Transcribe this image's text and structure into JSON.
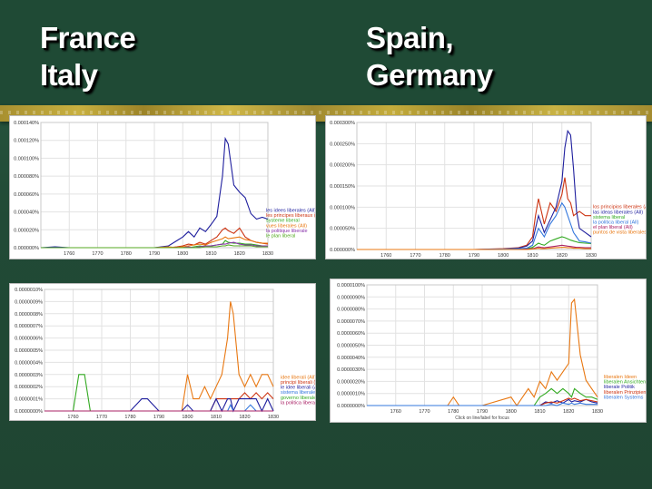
{
  "slide": {
    "title_left": [
      "France",
      "Italy"
    ],
    "title_right": [
      "Spain,",
      "Germany"
    ]
  },
  "colors": {
    "background": "#224a36",
    "chalk_strip": "#c8b040",
    "series": [
      "#1f1f9e",
      "#cc3311",
      "#33aa22",
      "#e87711",
      "#8833aa",
      "#55aa22"
    ]
  },
  "chart_data": [
    {
      "type": "line",
      "title": "",
      "x": [
        1750,
        1755,
        1760,
        1765,
        1770,
        1775,
        1780,
        1785,
        1790,
        1795,
        1798,
        1800,
        1802,
        1804,
        1806,
        1808,
        1810,
        1812,
        1814,
        1815,
        1816,
        1818,
        1820,
        1822,
        1824,
        1826,
        1828,
        1830
      ],
      "xticks": [
        1760,
        1770,
        1780,
        1790,
        1800,
        1810,
        1820,
        1830
      ],
      "yticks": [
        "0.000000%",
        "0.000020%",
        "0.000040%",
        "0.000060%",
        "0.000080%",
        "0.000100%",
        "0.000120%",
        "0.000140%"
      ],
      "ylim": [
        0,
        0.00014
      ],
      "series": [
        {
          "name": "les idees liberales (All)",
          "color": "#1f1f9e",
          "values": [
            0,
            1e-06,
            0,
            0,
            0,
            0,
            0,
            0,
            0,
            2e-06,
            8e-06,
            1.2e-05,
            1.8e-05,
            1.2e-05,
            2.2e-05,
            1.8e-05,
            2.6e-05,
            3.5e-05,
            8e-05,
            0.000122,
            0.000116,
            7e-05,
            6.2e-05,
            5.6e-05,
            3.8e-05,
            3.2e-05,
            3.4e-05,
            3.2e-05
          ]
        },
        {
          "name": "les principes liberaux (All)",
          "color": "#cc3311",
          "values": [
            0,
            0,
            0,
            0,
            0,
            0,
            0,
            0,
            0,
            0,
            1e-06,
            2e-06,
            4e-06,
            3e-06,
            6e-06,
            4e-06,
            8e-06,
            1.2e-05,
            2e-05,
            2.2e-05,
            1.9e-05,
            1.6e-05,
            2.2e-05,
            1.2e-05,
            8e-06,
            6e-06,
            5e-06,
            4e-06
          ]
        },
        {
          "name": "systeme liberal",
          "color": "#33aa22",
          "values": [
            0,
            0,
            0,
            0,
            0,
            0,
            0,
            0,
            0,
            0,
            0,
            1e-06,
            0,
            1e-06,
            2e-06,
            1e-06,
            2e-06,
            3e-06,
            4e-06,
            8e-06,
            6e-06,
            5e-06,
            5e-06,
            4e-06,
            4e-06,
            3e-06,
            2e-06,
            2e-06
          ]
        },
        {
          "name": "vues liberales (All)",
          "color": "#e87711",
          "values": [
            0,
            0,
            0,
            0,
            0,
            0,
            0,
            0,
            0,
            1e-06,
            0,
            1e-06,
            2e-06,
            3e-06,
            4e-06,
            3e-06,
            6e-06,
            8e-06,
            1e-05,
            1.2e-05,
            1e-05,
            1.1e-05,
            1.2e-05,
            9e-06,
            8e-06,
            6e-06,
            5e-06,
            5e-06
          ]
        },
        {
          "name": "la politique liberale",
          "color": "#8833aa",
          "values": [
            0,
            0,
            0,
            0,
            0,
            0,
            0,
            0,
            0,
            0,
            0,
            0,
            1e-06,
            0,
            1e-06,
            2e-06,
            2e-06,
            3e-06,
            4e-06,
            4e-06,
            5e-06,
            6e-06,
            4e-06,
            3e-06,
            3e-06,
            2e-06,
            2e-06,
            2e-06
          ]
        },
        {
          "name": "le plan liberal",
          "color": "#55aa22",
          "values": [
            0,
            0,
            0,
            0,
            0,
            0,
            0,
            0,
            0,
            0,
            0,
            0,
            0,
            0,
            0,
            1e-06,
            1e-06,
            1e-06,
            2e-06,
            2e-06,
            3e-06,
            2e-06,
            2e-06,
            2e-06,
            2e-06,
            1e-06,
            1e-06,
            1e-06
          ]
        }
      ]
    },
    {
      "type": "line",
      "title": "",
      "x": [
        1750,
        1760,
        1770,
        1780,
        1790,
        1800,
        1805,
        1808,
        1810,
        1811,
        1812,
        1813,
        1814,
        1816,
        1818,
        1820,
        1821,
        1822,
        1823,
        1824,
        1825,
        1826,
        1828,
        1830
      ],
      "xticks": [
        1760,
        1770,
        1780,
        1790,
        1800,
        1810,
        1820,
        1830
      ],
      "yticks": [
        "0.000000%",
        "0.000050%",
        "0.000100%",
        "0.000150%",
        "0.000200%",
        "0.000250%",
        "0.000300%"
      ],
      "ylim": [
        0,
        0.0003
      ],
      "series": [
        {
          "name": "los principios liberales (All)",
          "color": "#cc3311",
          "values": [
            0,
            0,
            0,
            0,
            0,
            2e-06,
            4e-06,
            1e-05,
            3e-05,
            8e-05,
            0.00012,
            9e-05,
            6e-05,
            0.00011,
            9e-05,
            0.00013,
            0.00017,
            0.00012,
            0.00011,
            8e-05,
            8.5e-05,
            9e-05,
            8e-05,
            8e-05
          ]
        },
        {
          "name": "las ideas liberales (All)",
          "color": "#1f1f9e",
          "values": [
            0,
            0,
            0,
            0,
            0,
            1e-06,
            3e-06,
            8e-06,
            2e-05,
            5e-05,
            8e-05,
            6e-05,
            4e-05,
            7e-05,
            0.0001,
            0.00016,
            0.00024,
            0.00028,
            0.00027,
            0.00019,
            9e-05,
            5e-05,
            4e-05,
            3e-05
          ]
        },
        {
          "name": "sistema liberal",
          "color": "#33aa22",
          "values": [
            0,
            0,
            0,
            0,
            0,
            0,
            1e-06,
            2e-06,
            5e-06,
            1e-05,
            1.5e-05,
            1.2e-05,
            1e-05,
            2e-05,
            2.5e-05,
            3e-05,
            2.8e-05,
            2.5e-05,
            2.2e-05,
            2e-05,
            1.8e-05,
            1.6e-05,
            1.5e-05,
            1.4e-05
          ]
        },
        {
          "name": "la politica liberal (All)",
          "color": "#3377dd",
          "values": [
            0,
            0,
            0,
            0,
            0,
            1e-06,
            2e-06,
            3e-06,
            1e-05,
            3e-05,
            5e-05,
            4e-05,
            3e-05,
            6e-05,
            8e-05,
            0.00011,
            0.0001,
            8e-05,
            6e-05,
            4e-05,
            3e-05,
            2e-05,
            1.8e-05,
            1.5e-05
          ]
        },
        {
          "name": "el plan liberal (All)",
          "color": "#aa2266",
          "values": [
            0,
            0,
            0,
            0,
            0,
            0,
            0,
            1e-06,
            2e-06,
            4e-06,
            6e-06,
            5e-06,
            4e-06,
            6e-06,
            8e-06,
            1e-05,
            9e-06,
            8e-06,
            7e-06,
            6e-06,
            5e-06,
            5e-06,
            4e-06,
            4e-06
          ]
        },
        {
          "name": "puntos de vista liberales",
          "color": "#e87711",
          "values": [
            0,
            0,
            0,
            0,
            0,
            0,
            0,
            0,
            1e-06,
            2e-06,
            3e-06,
            2e-06,
            2e-06,
            3e-06,
            4e-06,
            5e-06,
            5e-06,
            4e-06,
            4e-06,
            3e-06,
            3e-06,
            3e-06,
            2e-06,
            2e-06
          ]
        }
      ]
    },
    {
      "type": "line",
      "title": "",
      "x": [
        1750,
        1760,
        1762,
        1764,
        1766,
        1770,
        1780,
        1784,
        1786,
        1790,
        1796,
        1798,
        1800,
        1802,
        1804,
        1806,
        1808,
        1810,
        1812,
        1814,
        1815,
        1816,
        1818,
        1820,
        1822,
        1824,
        1826,
        1828,
        1830
      ],
      "xticks": [
        1760,
        1770,
        1780,
        1790,
        1800,
        1810,
        1820,
        1830
      ],
      "yticks": [
        "0.0000000%",
        "0.0000001%",
        "0.0000002%",
        "0.0000003%",
        "0.0000004%",
        "0.0000005%",
        "0.0000006%",
        "0.0000007%",
        "0.0000008%",
        "0.0000009%",
        "0.0000010%"
      ],
      "ylim": [
        0,
        1e-06
      ],
      "series": [
        {
          "name": "idee liberali (All)",
          "color": "#e87711",
          "values": [
            0,
            0,
            0,
            0,
            0,
            0,
            0,
            0,
            0,
            0,
            0,
            0,
            3e-07,
            1e-07,
            1e-07,
            2e-07,
            1e-07,
            2e-07,
            3e-07,
            6e-07,
            9e-07,
            8e-07,
            3e-07,
            2e-07,
            3e-07,
            2e-07,
            3e-07,
            3e-07,
            2e-07
          ]
        },
        {
          "name": "principi liberali (All)",
          "color": "#cc3311",
          "values": [
            0,
            0,
            0,
            0,
            0,
            0,
            0,
            0,
            0,
            0,
            0,
            0,
            0,
            0,
            0,
            0,
            0,
            1e-07,
            1e-07,
            1e-07,
            1e-07,
            1e-07,
            1e-07,
            1.5e-07,
            1e-07,
            1.5e-07,
            1e-07,
            1.5e-07,
            1e-07
          ]
        },
        {
          "name": "le idee liberali (All)",
          "color": "#1f1f9e",
          "values": [
            0,
            0,
            0,
            0,
            0,
            0,
            0,
            1e-07,
            1e-07,
            0,
            0,
            0,
            5e-08,
            0,
            0,
            0,
            0,
            1e-07,
            0,
            1e-07,
            1e-07,
            0,
            1e-07,
            1e-07,
            1e-07,
            1e-07,
            0,
            1e-07,
            0
          ]
        },
        {
          "name": "sistema liberale",
          "color": "#3377dd",
          "values": [
            0,
            0,
            0,
            0,
            0,
            0,
            0,
            0,
            0,
            0,
            0,
            0,
            0,
            0,
            0,
            0,
            0,
            0,
            0,
            0,
            5e-08,
            0,
            0,
            0,
            5e-08,
            0,
            0,
            0,
            0
          ]
        },
        {
          "name": "governo liberale",
          "color": "#33aa22",
          "values": [
            0,
            0,
            3e-07,
            3e-07,
            0,
            0,
            0,
            0,
            0,
            0,
            0,
            0,
            0,
            0,
            0,
            0,
            0,
            0,
            0,
            0,
            0,
            0,
            0,
            0,
            0,
            0,
            0,
            0,
            0
          ]
        },
        {
          "name": "la politica liberale",
          "color": "#aa2266",
          "values": [
            0,
            0,
            0,
            0,
            0,
            0,
            0,
            0,
            0,
            0,
            0,
            0,
            0,
            0,
            0,
            0,
            0,
            0,
            0,
            0,
            0,
            0,
            0,
            0,
            0,
            0,
            0,
            0,
            0
          ]
        }
      ]
    },
    {
      "type": "line",
      "title": "",
      "x": [
        1750,
        1760,
        1770,
        1778,
        1780,
        1782,
        1790,
        1800,
        1802,
        1804,
        1806,
        1808,
        1810,
        1812,
        1814,
        1816,
        1818,
        1820,
        1821,
        1822,
        1824,
        1826,
        1828,
        1830
      ],
      "xticks": [
        1760,
        1770,
        1780,
        1790,
        1800,
        1810,
        1820,
        1830
      ],
      "yticks": [
        "0.0000000%",
        "0.0000010%",
        "0.0000020%",
        "0.0000030%",
        "0.0000040%",
        "0.0000050%",
        "0.0000060%",
        "0.0000070%",
        "0.0000080%",
        "0.0000090%",
        "0.0000100%"
      ],
      "ylim": [
        0,
        1e-05
      ],
      "caption": "Click on line/label for focus",
      "series": [
        {
          "name": "liberalen Ideen",
          "color": "#e87711",
          "values": [
            0,
            0,
            0,
            0,
            7e-07,
            0,
            0,
            7e-07,
            0,
            7e-07,
            1.4e-06,
            7e-07,
            2e-06,
            1.4e-06,
            2.8e-06,
            2.1e-06,
            2.8e-06,
            3.5e-06,
            8.5e-06,
            8.8e-06,
            4.2e-06,
            2.1e-06,
            1.4e-06,
            7e-07
          ]
        },
        {
          "name": "liberalen Ansichten",
          "color": "#33aa22",
          "values": [
            0,
            0,
            0,
            0,
            0,
            0,
            0,
            0,
            0,
            0,
            0,
            0,
            7e-07,
            1e-06,
            1.4e-06,
            1e-06,
            1.4e-06,
            1e-06,
            7e-07,
            1.4e-06,
            1e-06,
            7e-07,
            7e-07,
            5e-07
          ]
        },
        {
          "name": "liberale Politik",
          "color": "#1f1f9e",
          "values": [
            0,
            0,
            0,
            0,
            0,
            0,
            0,
            0,
            0,
            0,
            0,
            0,
            0,
            3e-07,
            2e-07,
            4e-07,
            2e-07,
            5e-07,
            3e-07,
            4e-07,
            3e-07,
            5e-07,
            3e-07,
            2e-07
          ]
        },
        {
          "name": "liberalen Prinzipien",
          "color": "#cc3311",
          "values": [
            0,
            0,
            0,
            0,
            0,
            0,
            0,
            0,
            0,
            0,
            0,
            0,
            0,
            2e-07,
            3e-07,
            2e-07,
            4e-07,
            6e-07,
            5e-07,
            6e-07,
            4e-07,
            5e-07,
            4e-07,
            3e-07
          ]
        },
        {
          "name": "liberalen Systems",
          "color": "#3377dd",
          "values": [
            0,
            0,
            0,
            0,
            0,
            0,
            0,
            0,
            0,
            0,
            0,
            0,
            0,
            0,
            1e-07,
            0,
            2e-07,
            1e-07,
            2e-07,
            1e-07,
            2e-07,
            1e-07,
            1e-07,
            1e-07
          ]
        }
      ]
    }
  ]
}
